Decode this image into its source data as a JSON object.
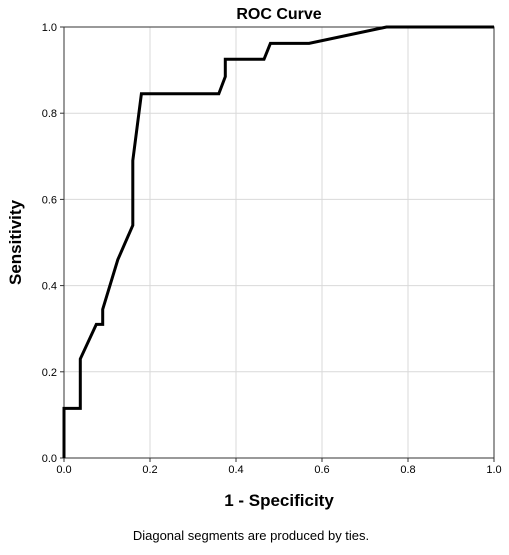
{
  "chart_data": {
    "type": "line",
    "title": "ROC Curve",
    "xlabel": "1 - Specificity",
    "ylabel": "Sensitivity",
    "footnote": "Diagonal segments are produced by ties.",
    "xlim": [
      0.0,
      1.0
    ],
    "ylim": [
      0.0,
      1.0
    ],
    "x_ticks": [
      "0.0",
      "0.2",
      "0.4",
      "0.6",
      "0.8",
      "1.0"
    ],
    "y_ticks": [
      "0.0",
      "0.2",
      "0.4",
      "0.6",
      "0.8",
      "1.0"
    ],
    "x_tick_values": [
      0.0,
      0.2,
      0.4,
      0.6,
      0.8,
      1.0
    ],
    "y_tick_values": [
      0.0,
      0.2,
      0.4,
      0.6,
      0.8,
      1.0
    ],
    "grid": true,
    "legend": "none",
    "series": [
      {
        "color": "#000000",
        "x": [
          0.0,
          0.0,
          0.038,
          0.038,
          0.075,
          0.09,
          0.09,
          0.125,
          0.16,
          0.16,
          0.18,
          0.18,
          0.36,
          0.375,
          0.375,
          0.465,
          0.48,
          0.57,
          0.75,
          1.0
        ],
        "y": [
          0.0,
          0.115,
          0.115,
          0.23,
          0.31,
          0.31,
          0.345,
          0.46,
          0.54,
          0.69,
          0.845,
          0.845,
          0.845,
          0.885,
          0.925,
          0.925,
          0.962,
          0.962,
          1.0,
          1.0
        ]
      }
    ]
  }
}
